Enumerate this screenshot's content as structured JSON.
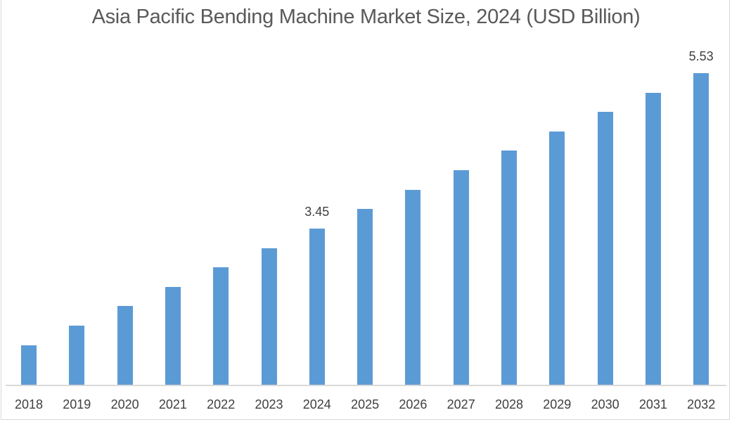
{
  "chart_data": {
    "type": "bar",
    "title": "Asia Pacific Bending Machine Market Size, 2024 (USD Billion)",
    "xlabel": "",
    "ylabel": "",
    "categories": [
      "2018",
      "2019",
      "2020",
      "2021",
      "2022",
      "2023",
      "2024",
      "2025",
      "2026",
      "2027",
      "2028",
      "2029",
      "2030",
      "2031",
      "2032"
    ],
    "values": [
      1.89,
      2.15,
      2.41,
      2.67,
      2.93,
      3.19,
      3.45,
      3.71,
      3.97,
      4.23,
      4.49,
      4.75,
      5.01,
      5.27,
      5.53
    ],
    "data_labels": {
      "2024": "3.45",
      "2032": "5.53"
    },
    "ylim": [
      1.36,
      5.9
    ],
    "grid": false,
    "legend": "none",
    "bar_color": "#5b9bd5"
  }
}
